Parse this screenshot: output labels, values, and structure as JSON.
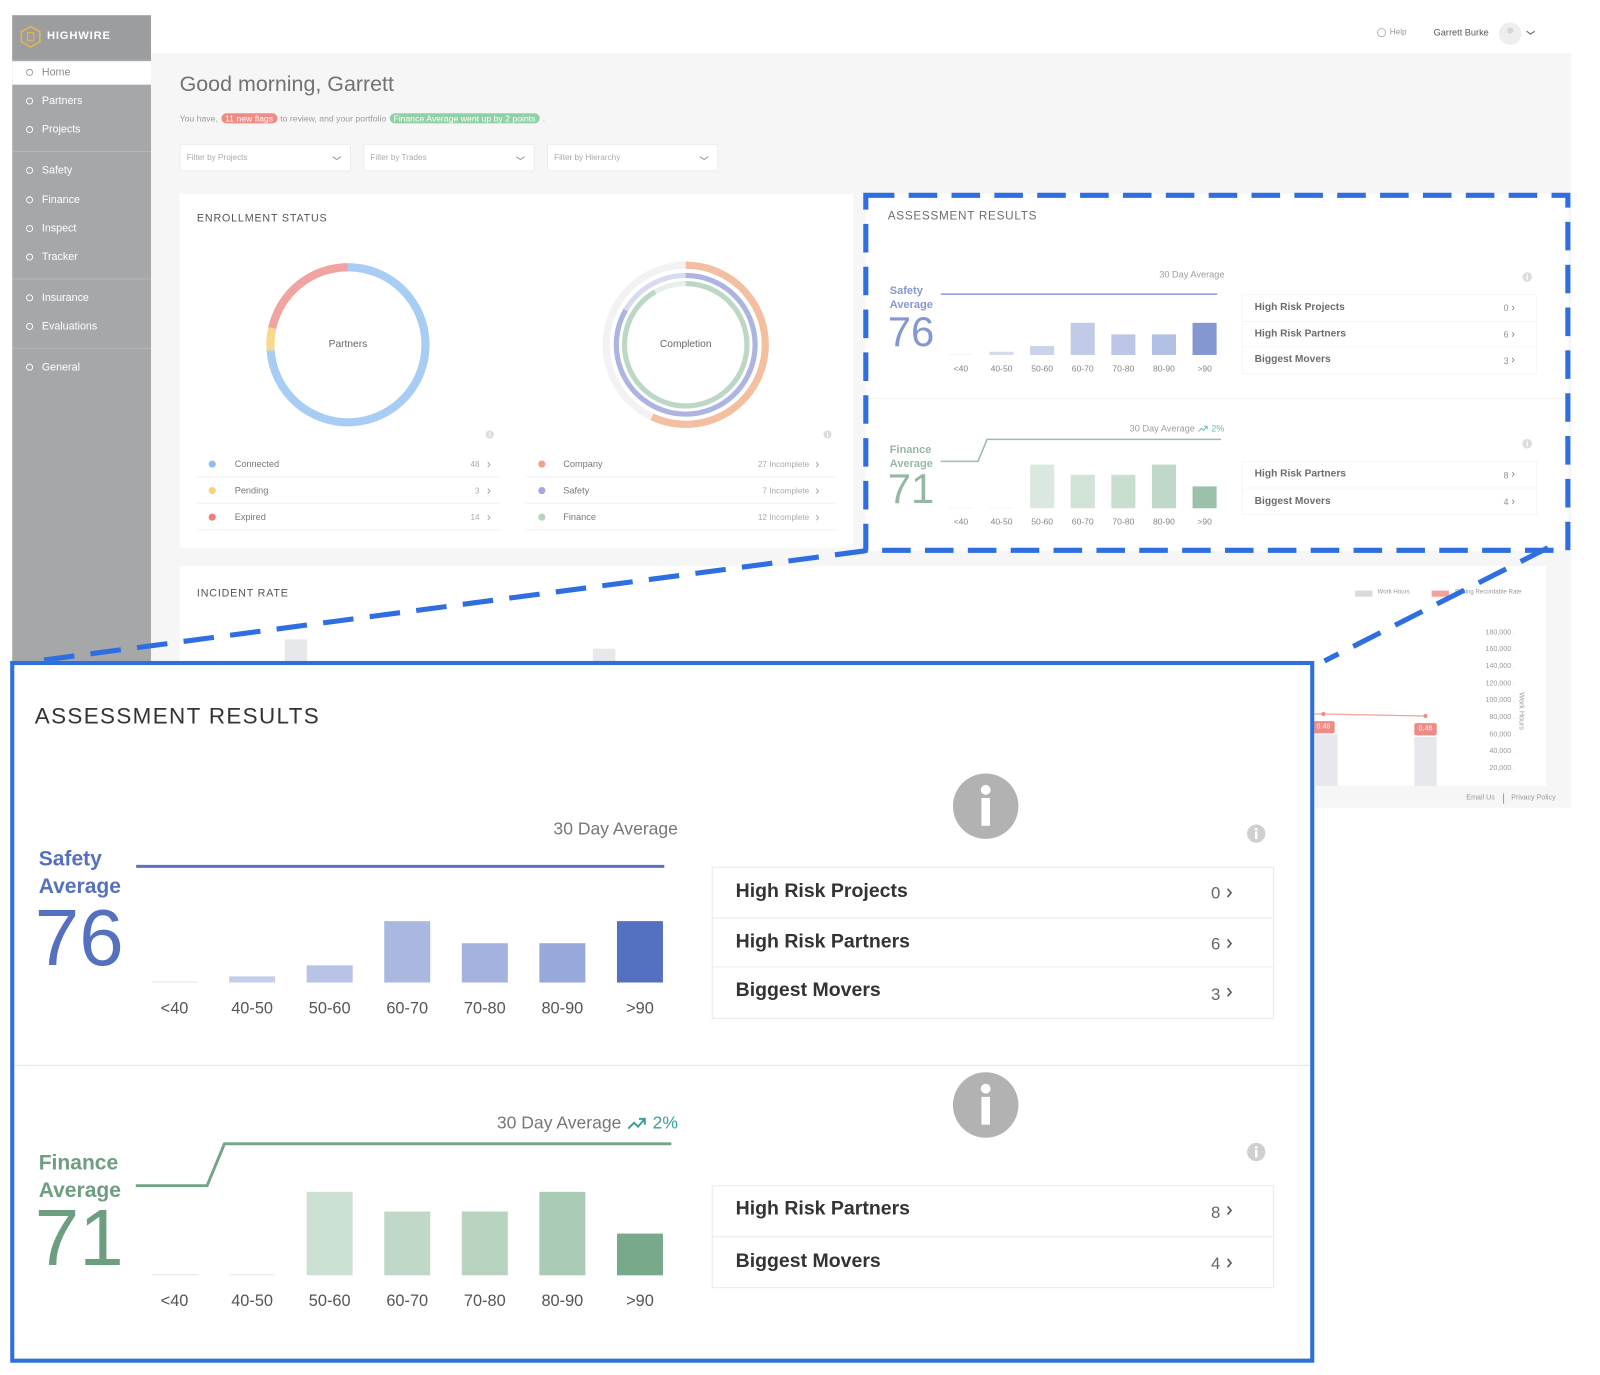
{
  "brand": "HIGHWIRE",
  "header": {
    "help": "Help",
    "user": "Garrett Burke"
  },
  "nav": [
    "Home",
    "Partners",
    "Projects",
    "Safety",
    "Finance",
    "Inspect",
    "Tracker",
    "Insurance",
    "Evaluations",
    "General"
  ],
  "greeting": "Good morning, Garrett",
  "summary": {
    "before": "You have,",
    "flags": "11 new flags",
    "middle": "to review, and your portfolio",
    "finance_badge": "Finance Average went up by 2 points",
    "after": "."
  },
  "filters": [
    "Filter by Projects",
    "Filter by Trades",
    "Filter by Hierarchy"
  ],
  "enrollment": {
    "title": "ENROLLMENT STATUS",
    "partners": {
      "center": "Partners",
      "categories": [
        "Connected",
        "Pending",
        "Expired"
      ],
      "values": [
        48,
        3,
        14
      ],
      "colors": [
        "#a7cdf4",
        "#f8d98c",
        "#f0a3a0"
      ],
      "dot_colors": [
        "#8fbff0",
        "#f6d27a",
        "#ee7e78"
      ]
    },
    "completion": {
      "center": "Completion",
      "categories": [
        "Company",
        "Safety",
        "Finance"
      ],
      "labels": [
        "27 Incomplete",
        "7 Incomplete",
        "12 Incomplete"
      ],
      "colors": [
        "#f4bfa0",
        "#aeb4e2",
        "#bcd7c5"
      ],
      "dot_colors": [
        "#f0a08a",
        "#a5a8dc",
        "#b5d4be"
      ]
    }
  },
  "assessment": {
    "title": "ASSESSMENT RESULTS",
    "panels": [
      {
        "label": "Safety Average",
        "average": 76,
        "caption": "30 Day Average",
        "color": "#5670c0",
        "categories": [
          "<40",
          "40-50",
          "50-60",
          "60-70",
          "70-80",
          "80-90",
          ">90"
        ],
        "values": [
          0,
          5,
          14,
          50,
          32,
          32,
          50
        ],
        "colors": [
          "#e8e8ea",
          "#c5cdea",
          "#b8c3e6",
          "#aab8e0",
          "#a3b2df",
          "#97a9db",
          "#5570c0"
        ],
        "links": [
          {
            "label": "High Risk Projects",
            "count": 0
          },
          {
            "label": "High Risk Partners",
            "count": 6
          },
          {
            "label": "Biggest Movers",
            "count": 3
          }
        ]
      },
      {
        "label": "Finance Average",
        "average": 71,
        "caption": "30 Day Average",
        "change": "2%",
        "color": "#6e9e80",
        "categories": [
          "<40",
          "40-50",
          "50-60",
          "60-70",
          "70-80",
          "80-90",
          ">90"
        ],
        "values": [
          0,
          0,
          68,
          52,
          52,
          68,
          34
        ],
        "colors": [
          "#e8e8ea",
          "#e8e8ea",
          "#cde0d4",
          "#c0d8c8",
          "#b7d2bf",
          "#a9cab5",
          "#77a98a"
        ],
        "links": [
          {
            "label": "High Risk Partners",
            "count": 8
          },
          {
            "label": "Biggest Movers",
            "count": 4
          }
        ]
      }
    ]
  },
  "incident": {
    "title": "INCIDENT RATE",
    "legend": [
      "Work Hours",
      "Rolling Recordable Rate"
    ],
    "legend_colors": [
      "#d9dadd",
      "#f3a19b"
    ],
    "axis_label": "Work Hours",
    "y2lim": [
      0,
      180000
    ],
    "y2ticks": [
      {
        "value": 180000,
        "label": "180,000"
      },
      {
        "value": 160000,
        "label": "160,000"
      },
      {
        "value": 140000,
        "label": "140,000"
      },
      {
        "value": 120000,
        "label": "120,000"
      },
      {
        "value": 100000,
        "label": "100,000"
      },
      {
        "value": 80000,
        "label": "80,000"
      },
      {
        "value": 60000,
        "label": "60,000"
      },
      {
        "value": 40000,
        "label": "40,000"
      },
      {
        "value": 20000,
        "label": "20,000"
      }
    ],
    "work_hours": [
      173000,
      162000,
      61000,
      58000
    ],
    "rate": [
      0.48,
      0.46
    ]
  },
  "footer": [
    "Email Us",
    "Privacy Policy"
  ]
}
